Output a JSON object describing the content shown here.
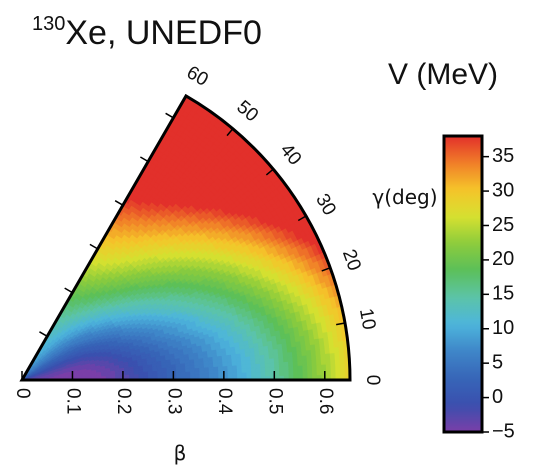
{
  "chart_data": {
    "type": "heatmap",
    "title_sup": "130",
    "title_main": "Xe, UNEDF0",
    "colorbar_title": "V (MeV)",
    "colorbar_ticks": [
      "35",
      "30",
      "25",
      "20",
      "15",
      "10",
      "5",
      "0",
      "−5"
    ],
    "colorbar_range": [
      -5,
      38
    ],
    "x_label": "β",
    "x_ticks": [
      "0",
      "0.1",
      "0.2",
      "0.3",
      "0.4",
      "0.5",
      "0.6"
    ],
    "x_range": [
      0,
      0.65
    ],
    "gamma_label": "γ(deg)",
    "gamma_ticks": [
      "0",
      "10",
      "20",
      "30",
      "40",
      "50",
      "60"
    ],
    "gamma_range": [
      0,
      60
    ],
    "minimum": {
      "beta": 0.12,
      "gamma": 0,
      "V": -5
    },
    "colors": {
      "outline": "#000000",
      "colormap": [
        "#7b3fa8",
        "#3a4fae",
        "#3766b8",
        "#3f86c8",
        "#4db5dc",
        "#5cc4a8",
        "#5bbf5a",
        "#8ccc3c",
        "#d6e030",
        "#f5c52a",
        "#f07e28",
        "#e2302b"
      ]
    }
  }
}
